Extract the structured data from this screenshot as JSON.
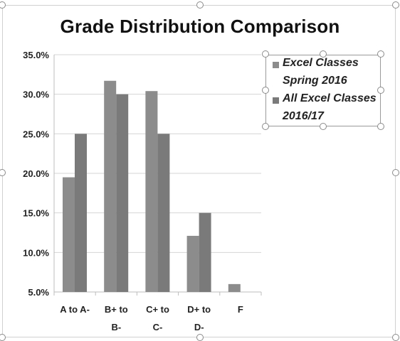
{
  "chart_data": {
    "type": "bar",
    "title": "Grade Distribution Comparison",
    "categories": [
      [
        "A to A-"
      ],
      [
        "B+ to",
        "B-"
      ],
      [
        "C+ to",
        "C-"
      ],
      [
        "D+ to",
        "D-"
      ],
      [
        "F"
      ]
    ],
    "series": [
      {
        "name": "Excel Classes Spring 2016",
        "values": [
          19.5,
          31.7,
          30.4,
          12.1,
          6.0
        ],
        "color": "#8c8c8c"
      },
      {
        "name": "All Excel Classes 2016/17",
        "values": [
          25.0,
          30.0,
          25.0,
          15.0,
          null
        ],
        "color": "#7a7a7a"
      }
    ],
    "ylim": [
      5,
      35
    ],
    "yticks": [
      "5.0%",
      "10.0%",
      "15.0%",
      "20.0%",
      "25.0%",
      "30.0%",
      "35.0%"
    ],
    "grid": true,
    "legend": {
      "position": "right",
      "entries": [
        {
          "lines": [
            "Excel Classes",
            "Spring 2016"
          ]
        },
        {
          "lines": [
            "All Excel Classes",
            "2016/17"
          ]
        }
      ]
    },
    "xlabel": "",
    "ylabel": ""
  }
}
